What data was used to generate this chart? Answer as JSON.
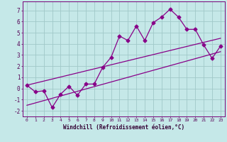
{
  "title": "",
  "xlabel": "Windchill (Refroidissement éolien,°C)",
  "ylabel": "",
  "bg_color": "#c5e8e8",
  "grid_color": "#a0c8c8",
  "line_color": "#880088",
  "xlim": [
    -0.5,
    23.5
  ],
  "ylim": [
    -2.5,
    7.8
  ],
  "xticks": [
    0,
    1,
    2,
    3,
    4,
    5,
    6,
    7,
    8,
    9,
    10,
    11,
    12,
    13,
    14,
    15,
    16,
    17,
    18,
    19,
    20,
    21,
    22,
    23
  ],
  "yticks": [
    -2,
    -1,
    0,
    1,
    2,
    3,
    4,
    5,
    6,
    7
  ],
  "data_x": [
    0,
    1,
    2,
    3,
    4,
    5,
    6,
    7,
    8,
    9,
    10,
    11,
    12,
    13,
    14,
    15,
    16,
    17,
    18,
    19,
    20,
    21,
    22,
    23
  ],
  "data_y": [
    0.3,
    -0.3,
    -0.2,
    -1.7,
    -0.5,
    0.2,
    -0.6,
    0.4,
    0.4,
    1.9,
    2.8,
    4.7,
    4.3,
    5.6,
    4.3,
    5.9,
    6.4,
    7.1,
    6.4,
    5.3,
    5.3,
    3.9,
    2.7,
    3.8
  ],
  "trend1_x": [
    0,
    23
  ],
  "trend1_y": [
    -1.5,
    3.3
  ],
  "trend2_x": [
    0,
    23
  ],
  "trend2_y": [
    0.3,
    4.5
  ]
}
